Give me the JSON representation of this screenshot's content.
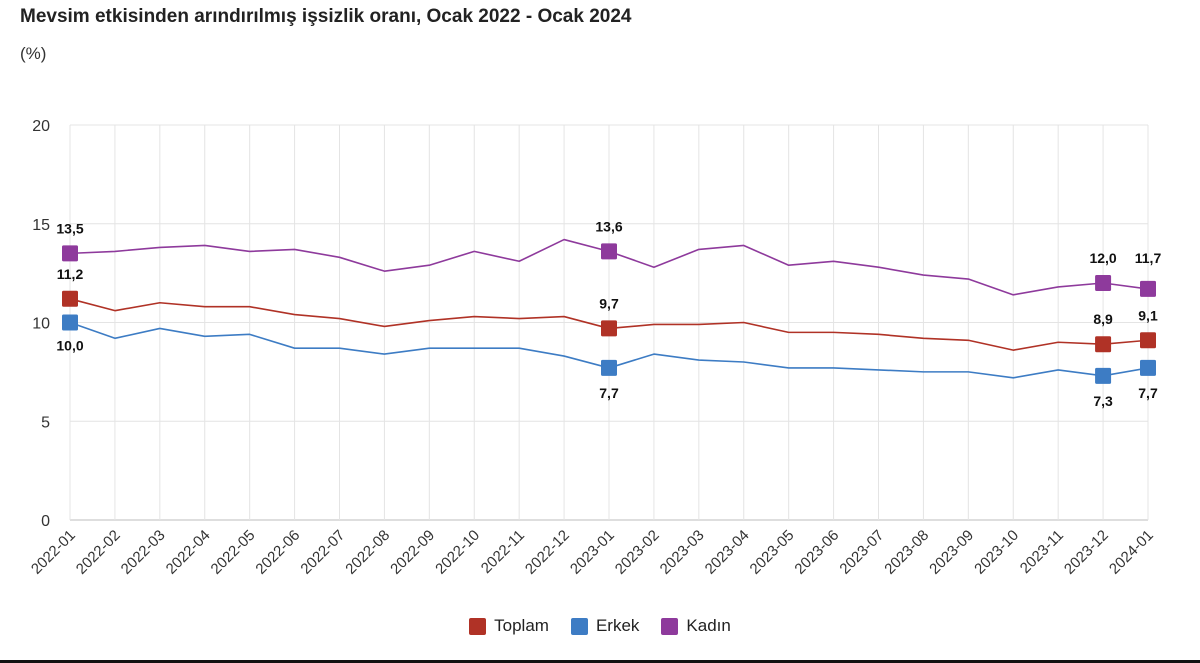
{
  "title": "Mevsim etkisinden arındırılmış işsizlik oranı, Ocak 2022 - Ocak 2024",
  "subtitle": "(%)",
  "chart_data": {
    "type": "line",
    "title": "Mevsim etkisinden arındırılmış işsizlik oranı, Ocak 2022 - Ocak 2024",
    "ylabel": "(%)",
    "xlabel": "",
    "ylim": [
      0,
      20
    ],
    "yticks": [
      0,
      5,
      10,
      15,
      20
    ],
    "grid": true,
    "legend_position": "bottom-center",
    "categories": [
      "2022-01",
      "2022-02",
      "2022-03",
      "2022-04",
      "2022-05",
      "2022-06",
      "2022-07",
      "2022-08",
      "2022-09",
      "2022-10",
      "2022-11",
      "2022-12",
      "2023-01",
      "2023-02",
      "2023-03",
      "2023-04",
      "2023-05",
      "2023-06",
      "2023-07",
      "2023-08",
      "2023-09",
      "2023-10",
      "2023-11",
      "2023-12",
      "2024-01"
    ],
    "series": [
      {
        "name": "Toplam",
        "color": "#b03226",
        "values": [
          11.2,
          10.6,
          11.0,
          10.8,
          10.8,
          10.4,
          10.2,
          9.8,
          10.1,
          10.3,
          10.2,
          10.3,
          9.7,
          9.9,
          9.9,
          10.0,
          9.5,
          9.5,
          9.4,
          9.2,
          9.1,
          8.6,
          9.0,
          8.9,
          9.1
        ],
        "markers": [
          0,
          12,
          23,
          24
        ],
        "labels": {
          "0": "11,2",
          "12": "9,7",
          "23": "8,9",
          "24": "9,1"
        }
      },
      {
        "name": "Erkek",
        "color": "#3d7cc4",
        "values": [
          10.0,
          9.2,
          9.7,
          9.3,
          9.4,
          8.7,
          8.7,
          8.4,
          8.7,
          8.7,
          8.7,
          8.3,
          7.7,
          8.4,
          8.1,
          8.0,
          7.7,
          7.7,
          7.6,
          7.5,
          7.5,
          7.2,
          7.6,
          7.3,
          7.7
        ],
        "markers": [
          0,
          12,
          23,
          24
        ],
        "labels": {
          "0": "10,0",
          "12": "7,7",
          "23": "7,3",
          "24": "7,7"
        }
      },
      {
        "name": "Kadın",
        "color": "#8e3a9c",
        "values": [
          13.5,
          13.6,
          13.8,
          13.9,
          13.6,
          13.7,
          13.3,
          12.6,
          12.9,
          13.6,
          13.1,
          14.2,
          13.6,
          12.8,
          13.7,
          13.9,
          12.9,
          13.1,
          12.8,
          12.4,
          12.2,
          11.4,
          11.8,
          12.0,
          11.7
        ],
        "markers": [
          0,
          12,
          23,
          24
        ],
        "labels": {
          "0": "13,5",
          "12": "13,6",
          "23": "12,0",
          "24": "11,7"
        }
      }
    ]
  }
}
